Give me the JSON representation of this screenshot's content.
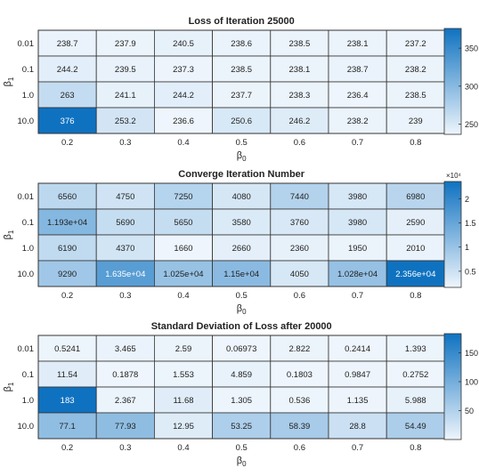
{
  "chart_data": [
    {
      "type": "heatmap",
      "title": "Loss of Iteration 25000",
      "xlabel": "β0",
      "ylabel": "β1",
      "x_categories": [
        "0.2",
        "0.3",
        "0.4",
        "0.5",
        "0.6",
        "0.7",
        "0.8"
      ],
      "y_categories": [
        "0.01",
        "0.1",
        "1.0",
        "10.0"
      ],
      "value_labels": [
        [
          "238.7",
          "237.9",
          "240.5",
          "238.6",
          "238.5",
          "238.1",
          "237.2"
        ],
        [
          "244.2",
          "239.5",
          "237.3",
          "238.5",
          "238.1",
          "238.7",
          "238.2"
        ],
        [
          "263",
          "241.1",
          "244.2",
          "237.7",
          "238.3",
          "236.4",
          "238.5"
        ],
        [
          "376",
          "253.2",
          "236.6",
          "250.6",
          "246.2",
          "238.2",
          "239"
        ]
      ],
      "values": [
        [
          238.7,
          237.9,
          240.5,
          238.6,
          238.5,
          238.1,
          237.2
        ],
        [
          244.2,
          239.5,
          237.3,
          238.5,
          238.1,
          238.7,
          238.2
        ],
        [
          263,
          241.1,
          244.2,
          237.7,
          238.3,
          236.4,
          238.5
        ],
        [
          376,
          253.2,
          236.6,
          250.6,
          246.2,
          238.2,
          239
        ]
      ],
      "colorbar": {
        "min": 236.4,
        "max": 376,
        "ticks": [
          250,
          300,
          350
        ],
        "tick_labels": [
          "250",
          "300",
          "350"
        ],
        "exponent_label": ""
      }
    },
    {
      "type": "heatmap",
      "title": "Converge Iteration Number",
      "xlabel": "β0",
      "ylabel": "β1",
      "x_categories": [
        "0.2",
        "0.3",
        "0.4",
        "0.5",
        "0.6",
        "0.7",
        "0.8"
      ],
      "y_categories": [
        "0.01",
        "0.1",
        "1.0",
        "10.0"
      ],
      "value_labels": [
        [
          "6560",
          "4750",
          "7250",
          "4080",
          "7440",
          "3980",
          "6980"
        ],
        [
          "1.193e+04",
          "5690",
          "5650",
          "3580",
          "3760",
          "3980",
          "2590"
        ],
        [
          "6190",
          "4370",
          "1660",
          "2660",
          "2360",
          "1950",
          "2010"
        ],
        [
          "9290",
          "1.635e+04",
          "1.025e+04",
          "1.15e+04",
          "4050",
          "1.028e+04",
          "2.356e+04"
        ]
      ],
      "values": [
        [
          6560,
          4750,
          7250,
          4080,
          7440,
          3980,
          6980
        ],
        [
          11930,
          5690,
          5650,
          3580,
          3760,
          3980,
          2590
        ],
        [
          6190,
          4370,
          1660,
          2660,
          2360,
          1950,
          2010
        ],
        [
          9290,
          16350,
          10250,
          11500,
          4050,
          10280,
          23560
        ]
      ],
      "colorbar": {
        "min": 1660,
        "max": 23560,
        "ticks": [
          5000,
          10000,
          15000,
          20000
        ],
        "tick_labels": [
          "0.5",
          "1",
          "1.5",
          "2"
        ],
        "exponent_label": "×10⁴"
      }
    },
    {
      "type": "heatmap",
      "title": "Standard Deviation of Loss after 20000",
      "xlabel": "β0",
      "ylabel": "β1",
      "x_categories": [
        "0.2",
        "0.3",
        "0.4",
        "0.5",
        "0.6",
        "0.7",
        "0.8"
      ],
      "y_categories": [
        "0.01",
        "0.1",
        "1.0",
        "10.0"
      ],
      "value_labels": [
        [
          "0.5241",
          "3.465",
          "2.59",
          "0.06973",
          "2.822",
          "0.2414",
          "1.393"
        ],
        [
          "11.54",
          "0.1878",
          "1.553",
          "4.859",
          "0.1803",
          "0.9847",
          "0.2752"
        ],
        [
          "183",
          "2.367",
          "11.68",
          "1.305",
          "0.536",
          "1.135",
          "5.988"
        ],
        [
          "77.1",
          "77.93",
          "12.95",
          "53.25",
          "58.39",
          "28.8",
          "54.49"
        ]
      ],
      "values": [
        [
          0.5241,
          3.465,
          2.59,
          0.06973,
          2.822,
          0.2414,
          1.393
        ],
        [
          11.54,
          0.1878,
          1.553,
          4.859,
          0.1803,
          0.9847,
          0.2752
        ],
        [
          183,
          2.367,
          11.68,
          1.305,
          0.536,
          1.135,
          5.988
        ],
        [
          77.1,
          77.93,
          12.95,
          53.25,
          58.39,
          28.8,
          54.49
        ]
      ],
      "colorbar": {
        "min": 0.06973,
        "max": 183,
        "ticks": [
          50,
          100,
          150
        ],
        "tick_labels": [
          "50",
          "100",
          "150"
        ],
        "exponent_label": ""
      }
    }
  ],
  "colors": {
    "low": "#eef5fc",
    "high": "#0f72c0",
    "grid": "#333333",
    "text_dark": "#222222",
    "text_light": "#ffffff"
  }
}
